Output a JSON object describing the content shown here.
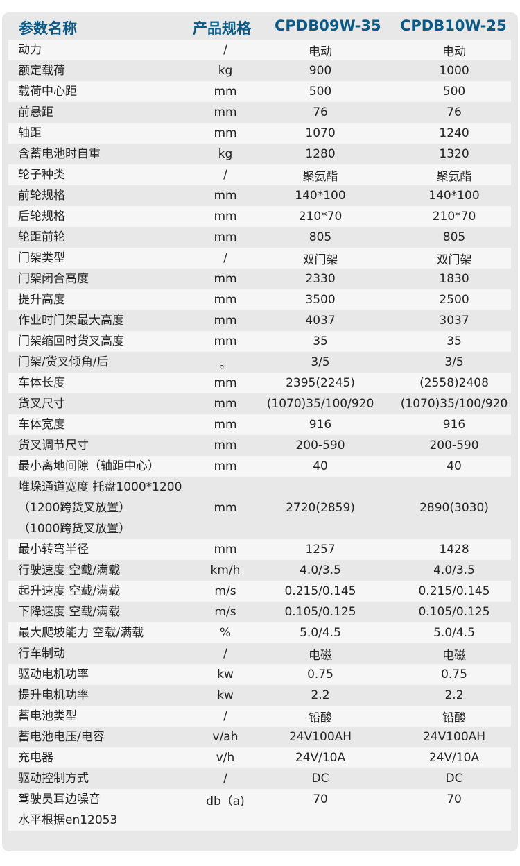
{
  "header": {
    "param": "参数名称",
    "unit": "产品规格",
    "model1": "CPDB09W-35",
    "model2": "CPDB10W-25"
  },
  "colors": {
    "header_text": "#0a5a85",
    "card_bg": "#e8e8e8",
    "row_light": "#f6f6f6"
  },
  "rows": [
    {
      "name": [
        "动力"
      ],
      "unit": "/",
      "v1": "电动",
      "v2": "电动"
    },
    {
      "name": [
        "额定载荷"
      ],
      "unit": "kg",
      "v1": "900",
      "v2": "1000"
    },
    {
      "name": [
        "载荷中心距"
      ],
      "unit": "mm",
      "v1": "500",
      "v2": "500"
    },
    {
      "name": [
        "前悬距"
      ],
      "unit": "mm",
      "v1": "76",
      "v2": "76"
    },
    {
      "name": [
        "轴距"
      ],
      "unit": "mm",
      "v1": "1070",
      "v2": "1240"
    },
    {
      "name": [
        "含蓄电池时自重"
      ],
      "unit": "kg",
      "v1": "1280",
      "v2": "1320"
    },
    {
      "name": [
        "轮子种类"
      ],
      "unit": "/",
      "v1": "聚氨酯",
      "v2": "聚氨酯"
    },
    {
      "name": [
        "前轮规格"
      ],
      "unit": "mm",
      "v1": "140*100",
      "v2": "140*100"
    },
    {
      "name": [
        "后轮规格"
      ],
      "unit": "mm",
      "v1": "210*70",
      "v2": "210*70"
    },
    {
      "name": [
        "轮距前轮"
      ],
      "unit": "mm",
      "v1": "805",
      "v2": "805"
    },
    {
      "name": [
        "门架类型"
      ],
      "unit": "/",
      "v1": "双门架",
      "v2": "双门架"
    },
    {
      "name": [
        "门架闭合高度"
      ],
      "unit": "mm",
      "v1": "2330",
      "v2": "1830"
    },
    {
      "name": [
        "提升高度"
      ],
      "unit": "mm",
      "v1": "3500",
      "v2": "2500"
    },
    {
      "name": [
        "作业时门架最大高度"
      ],
      "unit": "mm",
      "v1": "4037",
      "v2": "3037"
    },
    {
      "name": [
        "门架缩回时货叉高度"
      ],
      "unit": "mm",
      "v1": "35",
      "v2": "35"
    },
    {
      "name": [
        "门架/货叉倾角/后"
      ],
      "unit": "。",
      "v1": "3/5",
      "v2": "3/5"
    },
    {
      "name": [
        "车体长度"
      ],
      "unit": "mm",
      "v1": "2395(2245)",
      "v2": "(2558)2408"
    },
    {
      "name": [
        "货叉尺寸"
      ],
      "unit": "mm",
      "v1": "(1070)35/100/920",
      "v2": "(1070)35/100/920"
    },
    {
      "name": [
        "车体宽度"
      ],
      "unit": "mm",
      "v1": "916",
      "v2": "916"
    },
    {
      "name": [
        "货叉调节尺寸"
      ],
      "unit": "mm",
      "v1": "200-590",
      "v2": "200-590"
    },
    {
      "name": [
        "最小离地间隙（轴距中心）"
      ],
      "unit": "mm",
      "v1": "40",
      "v2": "40"
    },
    {
      "name": [
        "堆垛通道宽度 托盘1000*1200",
        "（1200跨货叉放置）",
        "（1000跨货叉放置）"
      ],
      "unit": "mm",
      "v1": "2720(2859)",
      "v2": "2890(3030)"
    },
    {
      "name": [
        "最小转弯半径"
      ],
      "unit": "mm",
      "v1": "1257",
      "v2": "1428"
    },
    {
      "name": [
        "行驶速度 空载/满载"
      ],
      "unit": "km/h",
      "v1": "4.0/3.5",
      "v2": "4.0/3.5"
    },
    {
      "name": [
        "起升速度 空载/满载"
      ],
      "unit": "m/s",
      "v1": "0.215/0.145",
      "v2": "0.215/0.145"
    },
    {
      "name": [
        "下降速度 空载/满载"
      ],
      "unit": "m/s",
      "v1": "0.105/0.125",
      "v2": "0.105/0.125"
    },
    {
      "name": [
        "最大爬坡能力 空载/满载"
      ],
      "unit": "%",
      "v1": "5.0/4.5",
      "v2": "5.0/4.5"
    },
    {
      "name": [
        "行车制动"
      ],
      "unit": "/",
      "v1": "电磁",
      "v2": "电磁"
    },
    {
      "name": [
        "驱动电机功率"
      ],
      "unit": "kw",
      "v1": "0.75",
      "v2": "0.75"
    },
    {
      "name": [
        "提升电机功率"
      ],
      "unit": "kw",
      "v1": "2.2",
      "v2": "2.2"
    },
    {
      "name": [
        "蓄电池类型"
      ],
      "unit": "/",
      "v1": "铅酸",
      "v2": "铅酸"
    },
    {
      "name": [
        "蓄电池电压/电容"
      ],
      "unit": "v/ah",
      "v1": "24V100AH",
      "v2": "24V100AH"
    },
    {
      "name": [
        "充电器"
      ],
      "unit": "v/h",
      "v1": "24V/10A",
      "v2": "24V/10A"
    },
    {
      "name": [
        "驱动控制方式"
      ],
      "unit": "/",
      "v1": "DC",
      "v2": "DC"
    },
    {
      "name": [
        "驾驶员耳边噪音",
        "水平根据en12053"
      ],
      "unit": "db（a)",
      "v1": "70",
      "v2": "70",
      "top_aligned": true
    }
  ]
}
